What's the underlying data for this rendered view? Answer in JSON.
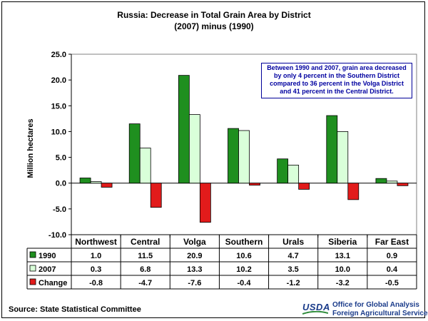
{
  "title": "Russia:  Decrease in Total Grain Area by District",
  "subtitle": "(2007) minus (1990)",
  "annotation": "Between 1990 and 2007, grain area decreased by only 4 percent in the Southern District compared to 36 percent in the Volga District and 41 percent in the Central District.",
  "source": "Source:  State Statistical Committee",
  "logo": {
    "usda": "USDA",
    "agency_line1": "Office for Global Analysis",
    "agency_line2": "Foreign Agricultural Service"
  },
  "colors": {
    "series_1990": "#1f8f1f",
    "series_2007": "#d9ffd9",
    "series_change": "#e21b1b",
    "annotation_text": "#0000a0"
  },
  "chart_data": {
    "type": "bar",
    "ylabel": "Million hectares",
    "ylim": [
      -10,
      25
    ],
    "yticks": [
      -10.0,
      -5.0,
      0.0,
      5.0,
      10.0,
      15.0,
      20.0,
      25.0
    ],
    "grid": false,
    "legend": "data-table",
    "categories": [
      "Northwest",
      "Central",
      "Volga",
      "Southern",
      "Urals",
      "Siberia",
      "Far East"
    ],
    "series": [
      {
        "name": "1990",
        "values": [
          1.0,
          11.5,
          20.9,
          10.6,
          4.7,
          13.1,
          0.9
        ]
      },
      {
        "name": "2007",
        "values": [
          0.3,
          6.8,
          13.3,
          10.2,
          3.5,
          10.0,
          0.4
        ]
      },
      {
        "name": "Change",
        "values": [
          -0.8,
          -4.7,
          -7.6,
          -0.4,
          -1.2,
          -3.2,
          -0.5
        ]
      }
    ]
  }
}
